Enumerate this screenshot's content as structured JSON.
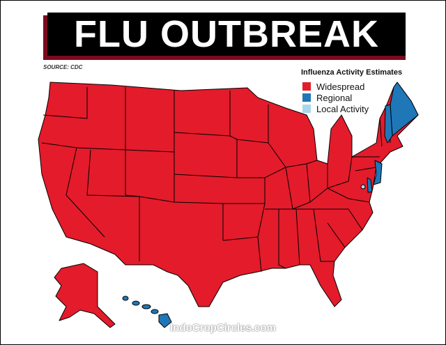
{
  "title": "FLU OUTBREAK",
  "source": "SOURCE: CDC",
  "legend": {
    "title": "Influenza Activity Estimates",
    "items": [
      {
        "label": "Widespread",
        "color": "#e31b2b"
      },
      {
        "label": "Regional",
        "color": "#1f77b8"
      },
      {
        "label": "Local Activity",
        "color": "#a8d8ea"
      }
    ]
  },
  "map": {
    "widespread_color": "#e31b2b",
    "regional_color": "#1f77b8",
    "local_color": "#a8d8ea",
    "regional_states": [
      "Maine",
      "New Hampshire",
      "New Jersey",
      "Delaware",
      "Hawaii"
    ],
    "local_activity": [
      "District of Columbia"
    ]
  },
  "watermark": "IndoCropCircles.com"
}
